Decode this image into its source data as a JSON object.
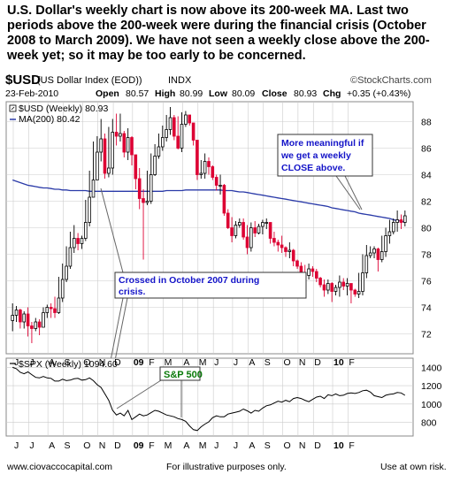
{
  "headline": "U.S. Dollar's weekly chart is now above its 200-week MA.   Last two periods above the 200-week were during the financial crisis (October 2008 to March 2009).   We have not seen a weekly close above the 200-week yet; so it may be too early to be concerned.",
  "header": {
    "symbol": "$USD",
    "name": "(US Dollar Index (EOD))",
    "exchange": "INDX",
    "brand": "©StockCharts.com",
    "date": "23-Feb-2010",
    "open_label": "Open",
    "open": "80.57",
    "high_label": "High",
    "high": "80.99",
    "low_label": "Low",
    "low": "80.09",
    "close_label": "Close",
    "close": "80.93",
    "chg_label": "Chg",
    "chg": "+0.35 (+0.43%)"
  },
  "legend": {
    "price": "$USD (Weekly) 80.93",
    "ma": "MA(200) 80.42",
    "spx": "$SPX (Weekly) 1094.60"
  },
  "annotations": {
    "meaningful": [
      "More meaningful if",
      "we get a weekly",
      "CLOSE above."
    ],
    "crossed": [
      "Crossed in October 2007 during",
      "crisis."
    ],
    "sp500": "S&P 500"
  },
  "footer": {
    "left": "www.ciovaccocapital.com",
    "center": "For illustrative purposes only.",
    "right": "Use at own risk."
  },
  "colors": {
    "up": "#000000",
    "down": "#dd0033",
    "ma": "#2a3aa8",
    "annotation_text": "#1414c8",
    "sp500_text": "#0a7a0a",
    "grid": "#cccccc"
  },
  "chart_data": [
    {
      "type": "candlestick",
      "title": "$USD (US Dollar Index (EOD)) INDX",
      "ylim": [
        70.5,
        89.5
      ],
      "y_ticks": [
        72,
        74,
        76,
        78,
        80,
        82,
        84,
        86,
        88
      ],
      "x_tick_labels": [
        "J",
        "J",
        "A",
        "S",
        "O",
        "N",
        "D",
        "09",
        "F",
        "M",
        "A",
        "M",
        "J",
        "J",
        "A",
        "S",
        "O",
        "N",
        "D",
        "10",
        "F"
      ],
      "series": [
        {
          "name": "$USD (Weekly)",
          "close": [
            73.4,
            73.8,
            72.9,
            73.5,
            72.6,
            72.4,
            72.9,
            72.5,
            73.6,
            74.0,
            73.9,
            73.6,
            74.7,
            76.1,
            77.1,
            78.5,
            79.2,
            78.8,
            79.2,
            80.4,
            82.3,
            83.6,
            85.7,
            86.7,
            84.1,
            84.5,
            87.2,
            86.9,
            87.1,
            85.7,
            86.8,
            85.5,
            83.7,
            82.2,
            81.9,
            82.0,
            84.0,
            85.4,
            86.1,
            86.8,
            87.4,
            88.3,
            86.9,
            86.0,
            87.8,
            88.5,
            87.9,
            86.6,
            84.0,
            84.1,
            85.0,
            84.6,
            83.8,
            83.2,
            83.2,
            81.1,
            80.0,
            79.4,
            80.2,
            80.4,
            79.3,
            78.5,
            80.0,
            79.6,
            80.1,
            80.4,
            80.4,
            79.2,
            78.9,
            78.7,
            78.5,
            78.2,
            78.3,
            77.5,
            77.1,
            76.5,
            76.4,
            76.9,
            76.7,
            76.2,
            75.7,
            75.3,
            75.8,
            75.2,
            75.5,
            75.9,
            75.6,
            75.8,
            75.3,
            75.0,
            75.2,
            76.6,
            77.9,
            78.1,
            78.4,
            77.6,
            78.2,
            79.4,
            79.7,
            80.4,
            80.6,
            80.4,
            80.9
          ],
          "high": [
            74.3,
            74.1,
            73.9,
            73.7,
            74.0,
            72.9,
            73.2,
            73.1,
            74.0,
            74.2,
            74.3,
            74.8,
            76.3,
            77.3,
            78.6,
            79.7,
            80.2,
            79.6,
            79.4,
            82.1,
            84.3,
            86.5,
            86.9,
            88.2,
            87.1,
            87.6,
            88.2,
            88.6,
            88.6,
            87.3,
            87.5,
            86.9,
            84.8,
            84.5,
            82.9,
            84.3,
            85.6,
            86.3,
            87.1,
            87.7,
            88.5,
            89.1,
            88.5,
            88.4,
            88.7,
            88.8,
            88.2,
            87.2,
            86.4,
            85.1,
            85.6,
            85.3,
            84.7,
            84.0,
            84.0,
            83.3,
            81.4,
            80.8,
            80.5,
            80.7,
            80.7,
            80.2,
            80.4,
            80.5,
            80.3,
            80.6,
            80.7,
            80.4,
            79.7,
            79.1,
            79.4,
            78.6,
            78.9,
            78.4,
            77.6,
            77.4,
            77.2,
            77.3,
            77.1,
            76.9,
            76.3,
            76.1,
            76.1,
            75.9,
            75.7,
            76.4,
            76.2,
            76.2,
            75.8,
            75.4,
            76.6,
            78.0,
            78.7,
            78.6,
            78.6,
            78.5,
            79.4,
            80.0,
            80.6,
            80.7,
            81.3,
            81.0,
            81.3
          ],
          "low": [
            72.2,
            72.9,
            72.4,
            72.4,
            71.8,
            71.3,
            72.2,
            71.9,
            72.5,
            73.2,
            73.2,
            73.2,
            73.5,
            74.4,
            75.9,
            76.9,
            78.1,
            78.3,
            78.4,
            79.0,
            80.1,
            82.8,
            83.6,
            85.0,
            83.7,
            83.8,
            84.0,
            86.2,
            86.5,
            85.3,
            85.1,
            84.7,
            82.9,
            81.4,
            77.6,
            81.7,
            81.8,
            83.9,
            85.2,
            85.8,
            86.5,
            87.0,
            86.6,
            85.9,
            85.7,
            87.6,
            87.7,
            86.2,
            83.6,
            83.7,
            83.7,
            84.0,
            83.6,
            82.8,
            82.5,
            80.9,
            79.9,
            78.9,
            79.2,
            80.0,
            79.1,
            78.0,
            78.2,
            79.3,
            79.5,
            79.5,
            79.9,
            78.8,
            78.6,
            78.2,
            78.1,
            77.8,
            77.7,
            77.1,
            76.9,
            76.1,
            76.0,
            76.1,
            76.3,
            75.9,
            75.5,
            74.8,
            75.0,
            74.4,
            74.9,
            74.8,
            75.3,
            74.9,
            74.3,
            74.8,
            74.7,
            74.9,
            76.2,
            77.7,
            77.7,
            76.7,
            77.4,
            77.8,
            78.8,
            79.5,
            79.7,
            79.9,
            80.1
          ]
        },
        {
          "name": "MA(200)",
          "values": [
            83.6,
            83.5,
            83.4,
            83.3,
            83.2,
            83.15,
            83.1,
            83.05,
            83.0,
            83.0,
            82.95,
            82.9,
            82.9,
            82.85,
            82.85,
            82.8,
            82.8,
            82.8,
            82.8,
            82.8,
            82.75,
            82.75,
            82.75,
            82.75,
            82.75,
            82.75,
            82.75,
            82.75,
            82.75,
            82.75,
            82.75,
            82.75,
            82.75,
            82.75,
            82.75,
            82.75,
            82.75,
            82.75,
            82.75,
            82.75,
            82.8,
            82.8,
            82.8,
            82.8,
            82.8,
            82.85,
            82.85,
            82.85,
            82.85,
            82.85,
            82.85,
            82.85,
            82.85,
            82.85,
            82.85,
            82.8,
            82.8,
            82.8,
            82.75,
            82.7,
            82.7,
            82.65,
            82.6,
            82.55,
            82.5,
            82.45,
            82.4,
            82.35,
            82.3,
            82.25,
            82.2,
            82.15,
            82.1,
            82.05,
            82.0,
            81.95,
            81.9,
            81.85,
            81.8,
            81.75,
            81.7,
            81.65,
            81.6,
            81.5,
            81.45,
            81.4,
            81.35,
            81.3,
            81.25,
            81.2,
            81.1,
            81.05,
            81.0,
            80.95,
            80.9,
            80.85,
            80.8,
            80.75,
            80.7,
            80.6,
            80.55,
            80.5,
            80.42
          ]
        }
      ]
    },
    {
      "type": "line",
      "title": "$SPX (Weekly) 1094.60",
      "ylim": [
        650,
        1500
      ],
      "y_ticks": [
        800,
        1000,
        1200,
        1400
      ],
      "x_tick_labels": [
        "J",
        "J",
        "A",
        "S",
        "O",
        "N",
        "D",
        "09",
        "F",
        "M",
        "A",
        "M",
        "J",
        "J",
        "A",
        "S",
        "O",
        "N",
        "D",
        "10",
        "F"
      ],
      "series": [
        {
          "name": "$SPX (Weekly)",
          "values": [
            1400,
            1385,
            1345,
            1330,
            1350,
            1320,
            1290,
            1285,
            1300,
            1285,
            1280,
            1250,
            1250,
            1270,
            1255,
            1260,
            1275,
            1280,
            1260,
            1265,
            1285,
            1255,
            1210,
            1180,
            1110,
            1040,
            930,
            880,
            900,
            870,
            930,
            830,
            860,
            890,
            870,
            880,
            905,
            930,
            920,
            900,
            880,
            870,
            860,
            840,
            830,
            810,
            760,
            720,
            710,
            750,
            780,
            805,
            850,
            870,
            860,
            860,
            890,
            900,
            910,
            920,
            945,
            925,
            900,
            930,
            920,
            955,
            980,
            990,
            1010,
            1030,
            1020,
            1040,
            1025,
            1060,
            1070,
            1060,
            1040,
            1025,
            1050,
            1075,
            1085,
            1060,
            1100,
            1090,
            1110,
            1090,
            1095,
            1115,
            1120,
            1115,
            1125,
            1145,
            1150,
            1130,
            1090,
            1080,
            1070,
            1095,
            1105,
            1110,
            1125,
            1120,
            1094.6
          ]
        }
      ]
    }
  ]
}
